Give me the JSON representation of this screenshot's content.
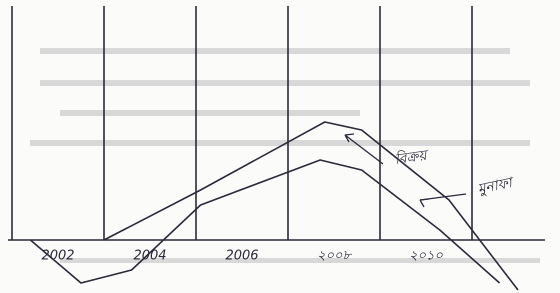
{
  "chart_data": {
    "type": "line",
    "xlim": [
      2001,
      2012.5
    ],
    "ylim": [
      -5,
      24
    ],
    "xticks": [
      {
        "value": 2002,
        "label": "2002"
      },
      {
        "value": 2004,
        "label": "2004"
      },
      {
        "value": 2006,
        "label": "2006"
      },
      {
        "value": 2008,
        "label": "২০০৮"
      },
      {
        "value": 2010,
        "label": "২০১০"
      }
    ],
    "xgrid": [
      2003,
      2005,
      2007,
      2009,
      2011
    ],
    "series": [
      {
        "name": "বিক্রয়",
        "color": "#2a2a3a",
        "x": [
          2003,
          2005.1,
          2007.8,
          2008.6,
          2010.5,
          2012
        ],
        "values": [
          0,
          5,
          11.8,
          11,
          4,
          -5
        ]
      },
      {
        "name": "মুনাফা",
        "color": "#2a2a3a",
        "x": [
          2001.4,
          2002.5,
          2003.6,
          2005.1,
          2007.7,
          2008.6,
          2010.3,
          2011.6
        ],
        "values": [
          0,
          -4.3,
          -3,
          3.5,
          8,
          7,
          1,
          -4.3
        ]
      }
    ]
  }
}
